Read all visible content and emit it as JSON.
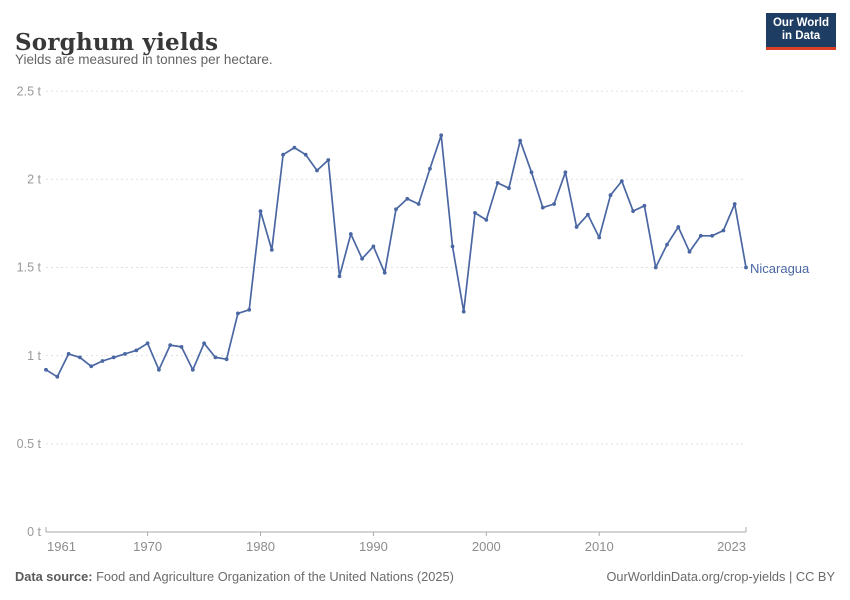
{
  "header": {
    "title": "Sorghum yields",
    "subtitle": "Yields are measured in tonnes per hectare."
  },
  "logo": {
    "line1": "Our World",
    "line2": "in Data"
  },
  "footer": {
    "source_label": "Data source:",
    "source_value": " Food and Agriculture Organization of the United Nations (2025)",
    "credit": "OurWorldinData.org/crop-yields | CC BY"
  },
  "colors": {
    "accent": "#4a67a3",
    "logo_bg": "#1d3d63",
    "logo_red": "#dc3e26",
    "grid": "#e0e0e0",
    "axis": "#a9a9a9",
    "axis_text": "#999999",
    "title": "#383838",
    "subtitle": "#646464",
    "footer": "#6b6b6b"
  },
  "chart_data": {
    "type": "line",
    "title": "Sorghum yields",
    "subtitle": "Yields are measured in tonnes per hectare.",
    "unit": "tonnes per hectare",
    "grid": "horizontal dashed",
    "legend_position": "entity label at right end of line",
    "xlim": [
      1961,
      2023
    ],
    "ylim": [
      0,
      2.5
    ],
    "x_ticks": [
      1961,
      1970,
      1980,
      1990,
      2000,
      2010,
      2023
    ],
    "x_tick_labels": [
      "1961",
      "1970",
      "1980",
      "1990",
      "2000",
      "2010",
      "2023"
    ],
    "y_ticks": [
      0,
      0.5,
      1,
      1.5,
      2,
      2.5
    ],
    "y_tick_labels": [
      "0 t",
      "0.5 t",
      "1 t",
      "1.5 t",
      "2 t",
      "2.5 t"
    ],
    "series": [
      {
        "name": "Nicaragua",
        "color": "#4a67a3",
        "x": [
          1961,
          1962,
          1963,
          1964,
          1965,
          1966,
          1967,
          1968,
          1969,
          1970,
          1971,
          1972,
          1973,
          1974,
          1975,
          1976,
          1977,
          1978,
          1979,
          1980,
          1981,
          1982,
          1983,
          1984,
          1985,
          1986,
          1987,
          1988,
          1989,
          1990,
          1991,
          1992,
          1993,
          1994,
          1995,
          1996,
          1997,
          1998,
          1999,
          2000,
          2001,
          2002,
          2003,
          2004,
          2005,
          2006,
          2007,
          2008,
          2009,
          2010,
          2011,
          2012,
          2013,
          2014,
          2015,
          2016,
          2017,
          2018,
          2019,
          2020,
          2021,
          2022,
          2023
        ],
        "values": [
          0.92,
          0.88,
          1.01,
          0.99,
          0.94,
          0.97,
          0.99,
          1.01,
          1.03,
          1.07,
          0.92,
          1.06,
          1.05,
          0.92,
          1.07,
          0.99,
          0.98,
          1.24,
          1.26,
          1.82,
          1.6,
          2.14,
          2.18,
          2.14,
          2.05,
          2.11,
          1.45,
          1.69,
          1.55,
          1.62,
          1.47,
          1.83,
          1.89,
          1.86,
          2.06,
          2.25,
          1.62,
          1.25,
          1.81,
          1.77,
          1.98,
          1.95,
          2.22,
          2.04,
          1.84,
          1.86,
          2.04,
          1.73,
          1.8,
          1.67,
          1.91,
          1.99,
          1.82,
          1.85,
          1.5,
          1.63,
          1.73,
          1.59,
          1.68,
          1.68,
          1.71,
          1.86,
          1.5
        ]
      }
    ]
  }
}
